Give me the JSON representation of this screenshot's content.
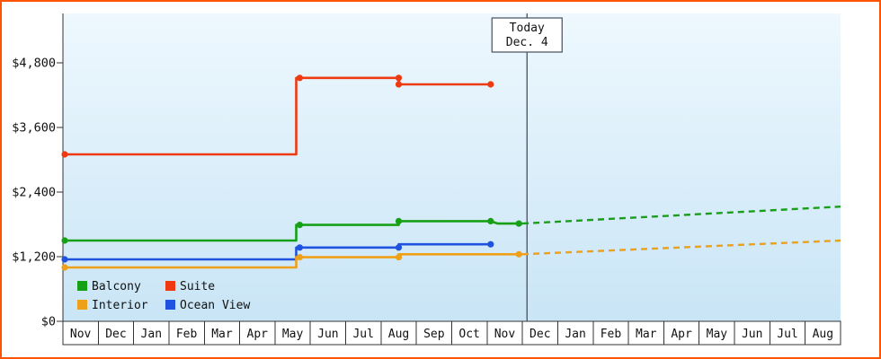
{
  "frame": {
    "border_color": "#ff5404"
  },
  "chart_data": {
    "type": "line",
    "description": "Cruise cabin price history by category with forecast after today",
    "y_axis": {
      "ticks": [
        {
          "label": "$0",
          "value": 0
        },
        {
          "label": "$1,200",
          "value": 1200
        },
        {
          "label": "$2,400",
          "value": 2400
        },
        {
          "label": "$3,600",
          "value": 3600
        },
        {
          "label": "$4,800",
          "value": 4800
        }
      ]
    },
    "x_axis": {
      "months": [
        "Nov",
        "Dec",
        "Jan",
        "Feb",
        "Mar",
        "Apr",
        "May",
        "Jun",
        "Jul",
        "Aug",
        "Sep",
        "Oct",
        "Nov",
        "Dec",
        "Jan",
        "Feb",
        "Mar",
        "Apr",
        "May",
        "Jun",
        "Jul",
        "Aug"
      ]
    },
    "today": {
      "line1": "Today",
      "line2": "Dec. 4",
      "x_index": 12.63
    },
    "series": [
      {
        "name": "Suite",
        "color": "#ee3911",
        "solid": [
          [
            -0.5,
            3100
          ],
          [
            6.1,
            3100
          ],
          [
            6.1,
            4520
          ],
          [
            9.0,
            4520
          ],
          [
            9.0,
            4400
          ],
          [
            11.6,
            4400
          ]
        ],
        "markers": [
          [
            -0.45,
            3100
          ],
          [
            6.2,
            4520
          ],
          [
            9.0,
            4520
          ],
          [
            9.0,
            4400
          ],
          [
            11.6,
            4400
          ]
        ],
        "dashed": []
      },
      {
        "name": "Balcony",
        "color": "#16a016",
        "solid": [
          [
            -0.5,
            1500
          ],
          [
            6.1,
            1500
          ],
          [
            6.1,
            1790
          ],
          [
            9.0,
            1790
          ],
          [
            9.0,
            1860
          ],
          [
            11.6,
            1860
          ],
          [
            11.8,
            1815
          ],
          [
            12.5,
            1815
          ]
        ],
        "markers": [
          [
            -0.45,
            1500
          ],
          [
            6.2,
            1790
          ],
          [
            9.0,
            1860
          ],
          [
            11.6,
            1860
          ],
          [
            12.4,
            1815
          ]
        ],
        "dashed": [
          [
            12.5,
            1815
          ],
          [
            21.5,
            2130
          ]
        ]
      },
      {
        "name": "Ocean View",
        "color": "#2052e0",
        "solid": [
          [
            -0.5,
            1150
          ],
          [
            6.1,
            1150
          ],
          [
            6.1,
            1370
          ],
          [
            9.0,
            1370
          ],
          [
            9.0,
            1430
          ],
          [
            11.6,
            1430
          ]
        ],
        "markers": [
          [
            -0.45,
            1150
          ],
          [
            6.2,
            1370
          ],
          [
            9.0,
            1370
          ],
          [
            11.6,
            1430
          ]
        ],
        "dashed": []
      },
      {
        "name": "Interior",
        "color": "#efa019",
        "solid": [
          [
            -0.5,
            1000
          ],
          [
            6.1,
            1000
          ],
          [
            6.1,
            1190
          ],
          [
            9.0,
            1190
          ],
          [
            9.0,
            1245
          ],
          [
            12.5,
            1245
          ]
        ],
        "markers": [
          [
            -0.45,
            1000
          ],
          [
            6.2,
            1190
          ],
          [
            9.0,
            1190
          ],
          [
            12.4,
            1245
          ]
        ],
        "dashed": [
          [
            12.5,
            1245
          ],
          [
            21.5,
            1500
          ]
        ]
      }
    ]
  },
  "legend": {
    "items": [
      {
        "label": "Balcony",
        "color": "#16a016"
      },
      {
        "label": "Suite",
        "color": "#ee3911"
      },
      {
        "label": "Interior",
        "color": "#efa019"
      },
      {
        "label": "Ocean View",
        "color": "#2052e0"
      }
    ]
  }
}
